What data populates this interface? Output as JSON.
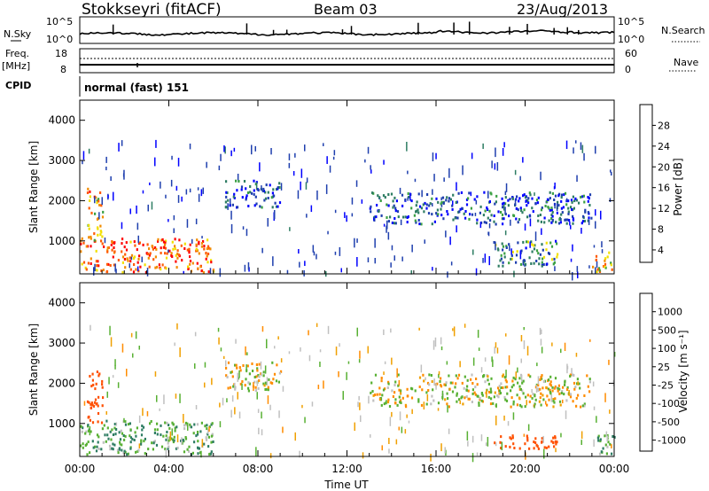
{
  "header": {
    "station": "Stokkseyri (fitACF)",
    "beam": "Beam 03",
    "date": "23/Aug/2013"
  },
  "strip_labels": {
    "nsky": "N.Sky",
    "nsearch": "N.Search",
    "freq_top": "Freq.",
    "freq_unit": "[MHz]",
    "nave": "Nave",
    "cpid": "CPID",
    "cpid_value": "normal (fast) 151",
    "noise_left_ticks": [
      "10^5",
      "10^0"
    ],
    "noise_right_ticks": [
      "10^5",
      "10^0"
    ],
    "freq_left_ticks": [
      "18",
      "8"
    ],
    "nave_right_ticks": [
      "60",
      "0"
    ]
  },
  "colors": {
    "power_scale": [
      "#0000ff",
      "#1f3fae",
      "#2e7d63",
      "#3aa043",
      "#f2e000",
      "#f28c00",
      "#ff5a00",
      "#ff0000"
    ],
    "velocity_scale": [
      "#ff0000",
      "#ff5000",
      "#ff8c00",
      "#f0a000",
      "#c0c0c0",
      "#58b033",
      "#2e7d63",
      "#1f3fae"
    ]
  },
  "chart_data": [
    {
      "type": "heatmap",
      "panel": "power",
      "xlabel": "",
      "ylabel": "Slant Range [km]",
      "xlim_hours": [
        0,
        24
      ],
      "ylim_km": [
        180,
        4500
      ],
      "y_ticks": [
        "4000",
        "3000",
        "2000",
        "1000"
      ],
      "colorbar": {
        "label": "Power [dB]",
        "ticks": [
          "28",
          "24",
          "20",
          "16",
          "12",
          "8",
          "4"
        ],
        "range": [
          0,
          30
        ]
      },
      "echo_regions": [
        {
          "t_start": 0.0,
          "t_end": 6.0,
          "r_start": 200,
          "r_end": 1050,
          "dominant_db": 24
        },
        {
          "t_start": 0.3,
          "t_end": 1.0,
          "r_start": 1000,
          "r_end": 2300,
          "dominant_db": 20
        },
        {
          "t_start": 6.5,
          "t_end": 9.0,
          "r_start": 1800,
          "r_end": 2500,
          "dominant_db": 6
        },
        {
          "t_start": 13.0,
          "t_end": 23.0,
          "r_start": 1400,
          "r_end": 2200,
          "dominant_db": 6
        },
        {
          "t_start": 18.5,
          "t_end": 21.5,
          "r_start": 350,
          "r_end": 1000,
          "dominant_db": 10
        },
        {
          "t_start": 23.0,
          "t_end": 24.0,
          "r_start": 200,
          "r_end": 700,
          "dominant_db": 20
        }
      ]
    },
    {
      "type": "heatmap",
      "panel": "velocity",
      "xlabel": "Time UT",
      "ylabel": "Slant Range [km]",
      "xlim_hours": [
        0,
        24
      ],
      "ylim_km": [
        180,
        4500
      ],
      "x_ticks": [
        "00:00",
        "04:00",
        "08:00",
        "12:00",
        "16:00",
        "20:00",
        "00:00"
      ],
      "y_ticks": [
        "4000",
        "3000",
        "2000",
        "1000"
      ],
      "colorbar": {
        "label": "Velocity [m s⁻¹]",
        "ticks": [
          "1000",
          "500",
          "100",
          "25",
          "-25",
          "-100",
          "-500",
          "-1000"
        ]
      },
      "echo_regions": [
        {
          "t_start": 0.0,
          "t_end": 6.0,
          "r_start": 200,
          "r_end": 1050,
          "dominant_ms": 80
        },
        {
          "t_start": 0.3,
          "t_end": 1.0,
          "r_start": 1000,
          "r_end": 2300,
          "dominant_ms": -400
        },
        {
          "t_start": 6.5,
          "t_end": 9.0,
          "r_start": 1800,
          "r_end": 2500,
          "dominant_ms": 0
        },
        {
          "t_start": 13.0,
          "t_end": 23.0,
          "r_start": 1400,
          "r_end": 2200,
          "dominant_ms": 0
        },
        {
          "t_start": 18.5,
          "t_end": 21.5,
          "r_start": 350,
          "r_end": 700,
          "dominant_ms": -300
        },
        {
          "t_start": 23.0,
          "t_end": 24.0,
          "r_start": 200,
          "r_end": 700,
          "dominant_ms": 60
        }
      ]
    }
  ]
}
